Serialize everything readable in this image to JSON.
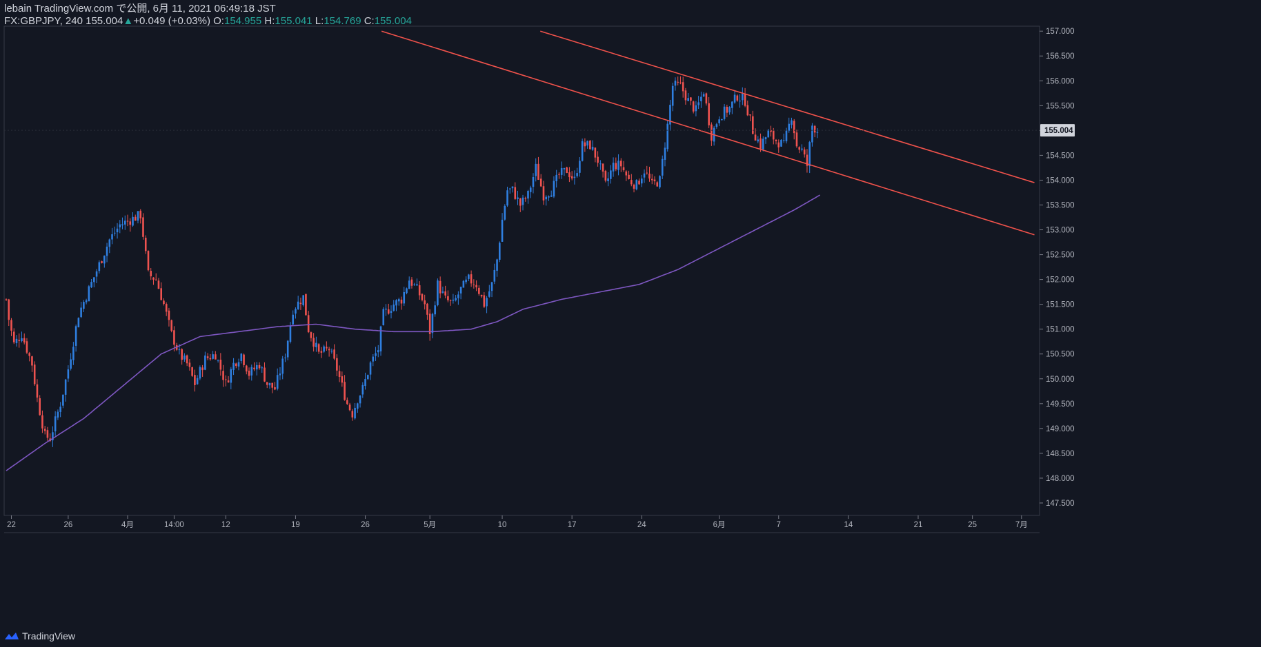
{
  "header": {
    "line1": "lebain TradingView.com で公開, 6月 11, 2021 06:49:18 JST",
    "symbol": "FX:GBPJPY, 240",
    "last": "155.004",
    "change_arrow": "▲",
    "change": "+0.049 (+0.03%)",
    "o_label": "O:",
    "o_value": "154.955",
    "h_label": "H:",
    "h_value": "155.041",
    "l_label": "L:",
    "l_value": "154.769",
    "c_label": "C:",
    "c_value": "155.004"
  },
  "footer": {
    "brand": "TradingView"
  },
  "colors": {
    "background": "#131722",
    "up": "#2f7fe0",
    "down": "#ef5350",
    "ma": "#7e57c2",
    "trendline": "#f0524b",
    "axis_text": "#b2b5be",
    "price_tag_bg": "#d1d4dc"
  },
  "chart_data": {
    "type": "candlestick",
    "title": "FX:GBPJPY, 240",
    "ylim": [
      147.25,
      157.1
    ],
    "y_ticks": [
      "157.000",
      "156.500",
      "156.000",
      "155.500",
      "155.000",
      "154.500",
      "154.000",
      "153.500",
      "153.000",
      "152.500",
      "152.000",
      "151.500",
      "151.000",
      "150.500",
      "150.000",
      "149.500",
      "149.000",
      "148.500",
      "148.000",
      "147.500"
    ],
    "current_price": "155.004",
    "x_ticks": [
      {
        "label": "22",
        "i": 2
      },
      {
        "label": "26",
        "i": 24
      },
      {
        "label": "4月",
        "i": 47
      },
      {
        "label": "14:00",
        "i": 65
      },
      {
        "label": "12",
        "i": 85
      },
      {
        "label": "19",
        "i": 112
      },
      {
        "label": "26",
        "i": 139
      },
      {
        "label": "5月",
        "i": 164
      },
      {
        "label": "10",
        "i": 192
      },
      {
        "label": "17",
        "i": 219
      },
      {
        "label": "24",
        "i": 246
      },
      {
        "label": "6月",
        "i": 276
      },
      {
        "label": "7",
        "i": 299
      },
      {
        "label": "14",
        "i": 326
      },
      {
        "label": "21",
        "i": 353
      },
      {
        "label": "25",
        "i": 374
      },
      {
        "label": "7月",
        "i": 393
      }
    ],
    "x_count": 398,
    "anchors": [
      [
        0,
        151.6
      ],
      [
        1,
        151.2
      ],
      [
        3,
        150.7
      ],
      [
        6,
        150.9
      ],
      [
        10,
        150.3
      ],
      [
        12,
        149.6
      ],
      [
        15,
        148.85
      ],
      [
        17,
        148.8
      ],
      [
        21,
        149.5
      ],
      [
        24,
        150.2
      ],
      [
        28,
        151.3
      ],
      [
        32,
        151.8
      ],
      [
        36,
        152.3
      ],
      [
        40,
        152.8
      ],
      [
        44,
        153.1
      ],
      [
        48,
        153.2
      ],
      [
        52,
        153.3
      ],
      [
        55,
        152.1
      ],
      [
        58,
        152.0
      ],
      [
        61,
        151.5
      ],
      [
        64,
        150.9
      ],
      [
        67,
        150.5
      ],
      [
        70,
        150.3
      ],
      [
        73,
        149.9
      ],
      [
        77,
        150.4
      ],
      [
        81,
        150.5
      ],
      [
        85,
        149.9
      ],
      [
        88,
        150.3
      ],
      [
        91,
        150.5
      ],
      [
        94,
        150.1
      ],
      [
        98,
        150.3
      ],
      [
        101,
        149.9
      ],
      [
        104,
        149.8
      ],
      [
        108,
        150.5
      ],
      [
        111,
        151.4
      ],
      [
        115,
        151.65
      ],
      [
        117,
        151.0
      ],
      [
        121,
        150.5
      ],
      [
        125,
        150.6
      ],
      [
        128,
        150.2
      ],
      [
        132,
        149.5
      ],
      [
        134,
        149.3
      ],
      [
        136,
        149.6
      ],
      [
        138,
        149.8
      ],
      [
        141,
        150.3
      ],
      [
        144,
        150.6
      ],
      [
        146,
        151.3
      ],
      [
        150,
        151.5
      ],
      [
        153,
        151.6
      ],
      [
        156,
        152.0
      ],
      [
        159,
        151.8
      ],
      [
        162,
        151.5
      ],
      [
        164,
        150.95
      ],
      [
        167,
        151.9
      ],
      [
        170,
        151.6
      ],
      [
        173,
        151.5
      ],
      [
        176,
        151.8
      ],
      [
        179,
        152.0
      ],
      [
        182,
        151.9
      ],
      [
        185,
        151.5
      ],
      [
        188,
        151.9
      ],
      [
        190,
        152.4
      ],
      [
        192,
        153.2
      ],
      [
        194,
        153.8
      ],
      [
        196,
        153.8
      ],
      [
        199,
        153.5
      ],
      [
        202,
        153.7
      ],
      [
        205,
        154.25
      ],
      [
        208,
        153.7
      ],
      [
        211,
        153.8
      ],
      [
        214,
        154.1
      ],
      [
        217,
        154.2
      ],
      [
        220,
        154.0
      ],
      [
        223,
        154.7
      ],
      [
        226,
        154.7
      ],
      [
        229,
        154.4
      ],
      [
        232,
        153.9
      ],
      [
        235,
        154.3
      ],
      [
        238,
        154.3
      ],
      [
        241,
        154.0
      ],
      [
        244,
        153.9
      ],
      [
        247,
        154.2
      ],
      [
        250,
        153.9
      ],
      [
        253,
        154.0
      ],
      [
        256,
        155.1
      ],
      [
        258,
        155.9
      ],
      [
        261,
        155.9
      ],
      [
        264,
        155.6
      ],
      [
        267,
        155.4
      ],
      [
        270,
        155.8
      ],
      [
        273,
        154.9
      ],
      [
        276,
        155.3
      ],
      [
        280,
        155.45
      ],
      [
        283,
        155.7
      ],
      [
        286,
        155.6
      ],
      [
        289,
        155.0
      ],
      [
        292,
        154.7
      ],
      [
        295,
        154.95
      ],
      [
        298,
        154.8
      ],
      [
        301,
        154.7
      ],
      [
        304,
        155.3
      ],
      [
        306,
        154.7
      ],
      [
        308,
        154.6
      ],
      [
        310,
        154.3
      ],
      [
        312,
        155.1
      ],
      [
        314,
        155.0
      ]
    ],
    "ma_anchors": [
      [
        0,
        148.15
      ],
      [
        15,
        148.7
      ],
      [
        30,
        149.2
      ],
      [
        45,
        149.85
      ],
      [
        60,
        150.5
      ],
      [
        75,
        150.85
      ],
      [
        90,
        150.95
      ],
      [
        105,
        151.05
      ],
      [
        120,
        151.1
      ],
      [
        135,
        151.0
      ],
      [
        150,
        150.95
      ],
      [
        165,
        150.95
      ],
      [
        180,
        151.0
      ],
      [
        190,
        151.15
      ],
      [
        200,
        151.4
      ],
      [
        215,
        151.6
      ],
      [
        230,
        151.75
      ],
      [
        245,
        151.9
      ],
      [
        260,
        152.2
      ],
      [
        275,
        152.6
      ],
      [
        290,
        153.0
      ],
      [
        305,
        153.4
      ],
      [
        315,
        153.7
      ]
    ],
    "trendlines": [
      {
        "name": "upper-channel-line",
        "x1": 206.75,
        "y1": 157.0,
        "x2": 398,
        "y2": 153.95
      },
      {
        "name": "lower-channel-line",
        "x1": 145.3,
        "y1": 157.0,
        "x2": 398,
        "y2": 152.9
      }
    ]
  }
}
